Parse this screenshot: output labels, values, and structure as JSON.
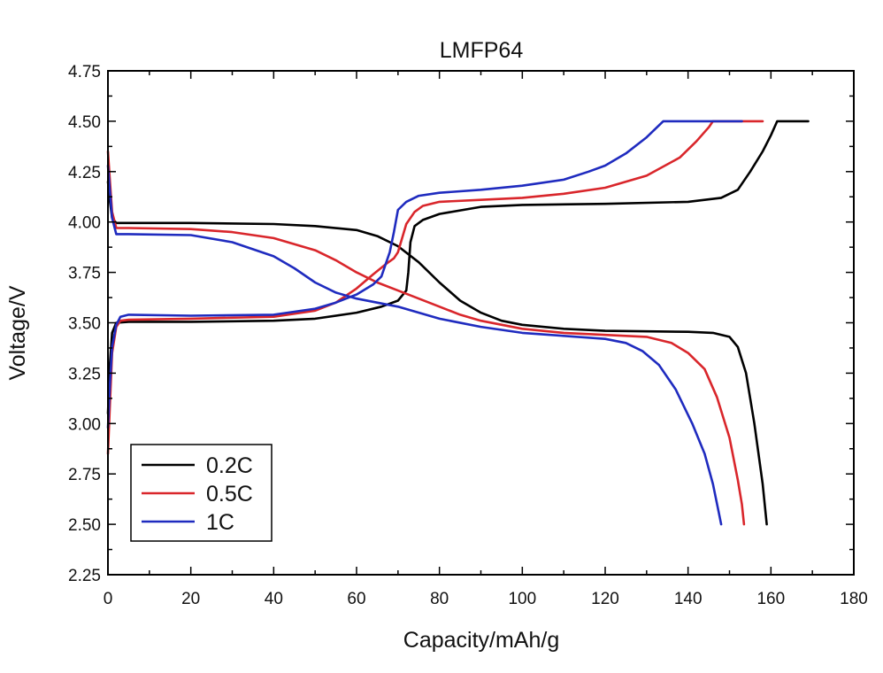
{
  "chart_data": {
    "type": "line",
    "title": "LMFP64",
    "xlabel": "Capacity/mAh/g",
    "ylabel": "Voltage/V",
    "xlim": [
      0,
      180
    ],
    "ylim": [
      2.25,
      4.75
    ],
    "xticks": [
      0,
      20,
      40,
      60,
      80,
      100,
      120,
      140,
      160,
      180
    ],
    "yticks": [
      2.25,
      2.5,
      2.75,
      3.0,
      3.25,
      3.5,
      3.75,
      4.0,
      4.25,
      4.5,
      4.75
    ],
    "xtick_labels": [
      "0",
      "20",
      "40",
      "60",
      "80",
      "100",
      "120",
      "140",
      "160",
      "180"
    ],
    "ytick_labels": [
      "2.25",
      "2.50",
      "2.75",
      "3.00",
      "3.25",
      "3.50",
      "3.75",
      "4.00",
      "4.25",
      "4.50",
      "4.75"
    ],
    "legend_position": "bottom-left",
    "series": [
      {
        "name": "0.2C",
        "color": "#000000",
        "segments": [
          [
            [
              0,
              3.05
            ],
            [
              0.5,
              3.3
            ],
            [
              1,
              3.45
            ],
            [
              2,
              3.5
            ],
            [
              5,
              3.505
            ],
            [
              20,
              3.505
            ],
            [
              40,
              3.51
            ],
            [
              50,
              3.52
            ],
            [
              60,
              3.55
            ],
            [
              66,
              3.58
            ],
            [
              70,
              3.61
            ],
            [
              72,
              3.66
            ],
            [
              72.5,
              3.75
            ],
            [
              73,
              3.9
            ],
            [
              74,
              3.98
            ],
            [
              76,
              4.01
            ],
            [
              80,
              4.04
            ],
            [
              90,
              4.075
            ],
            [
              100,
              4.085
            ],
            [
              120,
              4.09
            ],
            [
              140,
              4.1
            ],
            [
              148,
              4.12
            ],
            [
              152,
              4.16
            ],
            [
              155,
              4.25
            ],
            [
              158,
              4.35
            ],
            [
              160,
              4.43
            ],
            [
              161.5,
              4.5
            ],
            [
              169,
              4.5
            ]
          ],
          [
            [
              0,
              4.2
            ],
            [
              0.5,
              4.1
            ],
            [
              1,
              4.02
            ],
            [
              2,
              3.995
            ],
            [
              5,
              3.995
            ],
            [
              20,
              3.995
            ],
            [
              40,
              3.99
            ],
            [
              50,
              3.98
            ],
            [
              60,
              3.96
            ],
            [
              65,
              3.93
            ],
            [
              70,
              3.88
            ],
            [
              75,
              3.8
            ],
            [
              80,
              3.7
            ],
            [
              85,
              3.61
            ],
            [
              90,
              3.55
            ],
            [
              95,
              3.51
            ],
            [
              100,
              3.49
            ],
            [
              110,
              3.47
            ],
            [
              120,
              3.46
            ],
            [
              140,
              3.455
            ],
            [
              146,
              3.45
            ],
            [
              150,
              3.43
            ],
            [
              152,
              3.38
            ],
            [
              154,
              3.25
            ],
            [
              156,
              3.0
            ],
            [
              158,
              2.7
            ],
            [
              159,
              2.5
            ]
          ]
        ]
      },
      {
        "name": "0.5C",
        "color": "#d9262b",
        "segments": [
          [
            [
              0,
              2.85
            ],
            [
              0.5,
              3.1
            ],
            [
              1,
              3.35
            ],
            [
              2,
              3.48
            ],
            [
              3,
              3.51
            ],
            [
              5,
              3.515
            ],
            [
              20,
              3.52
            ],
            [
              40,
              3.53
            ],
            [
              50,
              3.56
            ],
            [
              55,
              3.6
            ],
            [
              60,
              3.67
            ],
            [
              64,
              3.74
            ],
            [
              67,
              3.79
            ],
            [
              69,
              3.82
            ],
            [
              70,
              3.85
            ],
            [
              71,
              3.92
            ],
            [
              72,
              3.99
            ],
            [
              74,
              4.05
            ],
            [
              76,
              4.08
            ],
            [
              80,
              4.1
            ],
            [
              90,
              4.11
            ],
            [
              100,
              4.12
            ],
            [
              110,
              4.14
            ],
            [
              120,
              4.17
            ],
            [
              130,
              4.23
            ],
            [
              138,
              4.32
            ],
            [
              142,
              4.4
            ],
            [
              145,
              4.47
            ],
            [
              146,
              4.5
            ],
            [
              158,
              4.5
            ]
          ],
          [
            [
              0,
              4.35
            ],
            [
              0.5,
              4.2
            ],
            [
              1,
              4.05
            ],
            [
              2,
              3.97
            ],
            [
              5,
              3.97
            ],
            [
              20,
              3.965
            ],
            [
              30,
              3.95
            ],
            [
              40,
              3.92
            ],
            [
              50,
              3.86
            ],
            [
              55,
              3.81
            ],
            [
              60,
              3.75
            ],
            [
              65,
              3.7
            ],
            [
              70,
              3.66
            ],
            [
              75,
              3.62
            ],
            [
              80,
              3.58
            ],
            [
              85,
              3.54
            ],
            [
              90,
              3.51
            ],
            [
              100,
              3.47
            ],
            [
              110,
              3.45
            ],
            [
              120,
              3.44
            ],
            [
              130,
              3.43
            ],
            [
              136,
              3.4
            ],
            [
              140,
              3.35
            ],
            [
              144,
              3.27
            ],
            [
              147,
              3.13
            ],
            [
              150,
              2.93
            ],
            [
              152,
              2.72
            ],
            [
              153,
              2.6
            ],
            [
              153.5,
              2.5
            ]
          ]
        ]
      },
      {
        "name": "1C",
        "color": "#1f2bbf",
        "segments": [
          [
            [
              0,
              2.98
            ],
            [
              0.5,
              3.2
            ],
            [
              1,
              3.38
            ],
            [
              2,
              3.49
            ],
            [
              3,
              3.53
            ],
            [
              5,
              3.54
            ],
            [
              20,
              3.535
            ],
            [
              40,
              3.54
            ],
            [
              50,
              3.57
            ],
            [
              55,
              3.6
            ],
            [
              60,
              3.64
            ],
            [
              64,
              3.69
            ],
            [
              66,
              3.73
            ],
            [
              68,
              3.85
            ],
            [
              69,
              3.95
            ],
            [
              70,
              4.06
            ],
            [
              72,
              4.1
            ],
            [
              75,
              4.13
            ],
            [
              80,
              4.145
            ],
            [
              90,
              4.16
            ],
            [
              100,
              4.18
            ],
            [
              110,
              4.21
            ],
            [
              116,
              4.25
            ],
            [
              120,
              4.28
            ],
            [
              125,
              4.34
            ],
            [
              130,
              4.42
            ],
            [
              134,
              4.5
            ],
            [
              153,
              4.5
            ]
          ],
          [
            [
              0,
              4.28
            ],
            [
              0.5,
              4.15
            ],
            [
              1,
              4.02
            ],
            [
              2,
              3.94
            ],
            [
              5,
              3.94
            ],
            [
              20,
              3.935
            ],
            [
              30,
              3.9
            ],
            [
              40,
              3.83
            ],
            [
              45,
              3.77
            ],
            [
              50,
              3.7
            ],
            [
              55,
              3.65
            ],
            [
              60,
              3.62
            ],
            [
              70,
              3.58
            ],
            [
              80,
              3.52
            ],
            [
              90,
              3.48
            ],
            [
              100,
              3.45
            ],
            [
              110,
              3.435
            ],
            [
              120,
              3.42
            ],
            [
              125,
              3.4
            ],
            [
              129,
              3.36
            ],
            [
              133,
              3.29
            ],
            [
              137,
              3.17
            ],
            [
              141,
              3.0
            ],
            [
              144,
              2.85
            ],
            [
              146,
              2.7
            ],
            [
              147.5,
              2.55
            ],
            [
              148,
              2.5
            ]
          ]
        ]
      }
    ]
  }
}
